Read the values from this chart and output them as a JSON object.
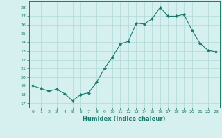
{
  "x": [
    0,
    1,
    2,
    3,
    4,
    5,
    6,
    7,
    8,
    9,
    10,
    11,
    12,
    13,
    14,
    15,
    16,
    17,
    18,
    19,
    20,
    21,
    22,
    23
  ],
  "y": [
    19,
    18.7,
    18.4,
    18.6,
    18.1,
    17.3,
    18.0,
    18.2,
    19.4,
    21.0,
    22.3,
    23.8,
    24.1,
    26.2,
    26.1,
    26.7,
    28.0,
    27.0,
    27.0,
    27.2,
    25.4,
    23.9,
    23.1,
    22.9
  ],
  "line_color": "#1a7a6e",
  "marker": "D",
  "marker_size": 2.0,
  "bg_color": "#d6f0ef",
  "grid_color": "#b0d8d4",
  "xlabel": "Humidex (Indice chaleur)",
  "ylabel_ticks": [
    17,
    18,
    19,
    20,
    21,
    22,
    23,
    24,
    25,
    26,
    27,
    28
  ],
  "ylim": [
    16.5,
    28.7
  ],
  "xlim": [
    -0.5,
    23.5
  ]
}
